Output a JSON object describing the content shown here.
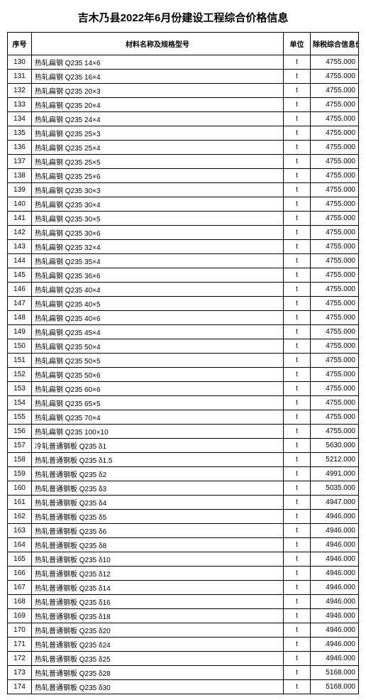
{
  "title": "吉木乃县2022年6月份建设工程综合价格信息",
  "columns": {
    "seq": "序号",
    "name": "材料名称及规格型号",
    "unit": "单位",
    "price": "除税综合信息价"
  },
  "rows": [
    {
      "seq": "130",
      "name": "热轧扁钢 Q235 14×6",
      "unit": "t",
      "price": "4755.000"
    },
    {
      "seq": "131",
      "name": "热轧扁钢 Q235 16×4",
      "unit": "t",
      "price": "4755.000"
    },
    {
      "seq": "132",
      "name": "热轧扁钢 Q235 20×3",
      "unit": "t",
      "price": "4755.000"
    },
    {
      "seq": "133",
      "name": "热轧扁钢 Q235 20×4",
      "unit": "t",
      "price": "4755.000"
    },
    {
      "seq": "134",
      "name": "热轧扁钢 Q235 24×4",
      "unit": "t",
      "price": "4755.000"
    },
    {
      "seq": "135",
      "name": "热轧扁钢 Q235 25×3",
      "unit": "t",
      "price": "4755.000"
    },
    {
      "seq": "136",
      "name": "热轧扁钢 Q235 25×4",
      "unit": "t",
      "price": "4755.000"
    },
    {
      "seq": "137",
      "name": "热轧扁钢 Q235 25×5",
      "unit": "t",
      "price": "4755.000"
    },
    {
      "seq": "138",
      "name": "热轧扁钢 Q235 25×6",
      "unit": "t",
      "price": "4755.000"
    },
    {
      "seq": "139",
      "name": "热轧扁钢 Q235 30×3",
      "unit": "t",
      "price": "4755.000"
    },
    {
      "seq": "140",
      "name": "热轧扁钢 Q235 30×4",
      "unit": "t",
      "price": "4755.000"
    },
    {
      "seq": "141",
      "name": "热轧扁钢 Q235 30×5",
      "unit": "t",
      "price": "4755.000"
    },
    {
      "seq": "142",
      "name": "热轧扁钢 Q235 30×6",
      "unit": "t",
      "price": "4755.000"
    },
    {
      "seq": "143",
      "name": "热轧扁钢 Q235 32×4",
      "unit": "t",
      "price": "4755.000"
    },
    {
      "seq": "144",
      "name": "热轧扁钢 Q235 35×4",
      "unit": "t",
      "price": "4755.000"
    },
    {
      "seq": "145",
      "name": "热轧扁钢 Q235 36×6",
      "unit": "t",
      "price": "4755.000"
    },
    {
      "seq": "146",
      "name": "热轧扁钢 Q235 40×4",
      "unit": "t",
      "price": "4755.000"
    },
    {
      "seq": "147",
      "name": "热轧扁钢 Q235 40×5",
      "unit": "t",
      "price": "4755.000"
    },
    {
      "seq": "148",
      "name": "热轧扁钢 Q235 40×6",
      "unit": "t",
      "price": "4755.000"
    },
    {
      "seq": "149",
      "name": "热轧扁钢 Q235 45×4",
      "unit": "t",
      "price": "4755.000"
    },
    {
      "seq": "150",
      "name": "热轧扁钢 Q235 50×4",
      "unit": "t",
      "price": "4755.000"
    },
    {
      "seq": "151",
      "name": "热轧扁钢 Q235 50×5",
      "unit": "t",
      "price": "4755.000"
    },
    {
      "seq": "152",
      "name": "热轧扁钢 Q235 50×6",
      "unit": "t",
      "price": "4755.000"
    },
    {
      "seq": "153",
      "name": "热轧扁钢 Q235 60×6",
      "unit": "t",
      "price": "4755.000"
    },
    {
      "seq": "154",
      "name": "热轧扁钢 Q235 65×5",
      "unit": "t",
      "price": "4755.000"
    },
    {
      "seq": "155",
      "name": "热轧扁钢 Q235 70×4",
      "unit": "t",
      "price": "4755.000"
    },
    {
      "seq": "156",
      "name": "热轧扁钢 Q235 100×10",
      "unit": "t",
      "price": "4755.000"
    },
    {
      "seq": "157",
      "name": "冷轧普通钢板 Q235 δ1",
      "unit": "t",
      "price": "5630.000"
    },
    {
      "seq": "158",
      "name": "热轧普通钢板 Q235 δ1.5",
      "unit": "t",
      "price": "5212.000"
    },
    {
      "seq": "159",
      "name": "热轧普通钢板 Q235 δ2",
      "unit": "t",
      "price": "4991.000"
    },
    {
      "seq": "160",
      "name": "热轧普通钢板 Q235 δ3",
      "unit": "t",
      "price": "5035.000"
    },
    {
      "seq": "161",
      "name": "热轧普通钢板 Q235 δ4",
      "unit": "t",
      "price": "4947.000"
    },
    {
      "seq": "162",
      "name": "热轧普通钢板 Q235 δ5",
      "unit": "t",
      "price": "4946.000"
    },
    {
      "seq": "163",
      "name": "热轧普通钢板 Q235 δ6",
      "unit": "t",
      "price": "4946.000"
    },
    {
      "seq": "164",
      "name": "热轧普通钢板 Q235 δ8",
      "unit": "t",
      "price": "4946.000"
    },
    {
      "seq": "165",
      "name": "热轧普通钢板 Q235 δ10",
      "unit": "t",
      "price": "4946.000"
    },
    {
      "seq": "166",
      "name": "热轧普通钢板 Q235 δ12",
      "unit": "t",
      "price": "4946.000"
    },
    {
      "seq": "167",
      "name": "热轧普通钢板 Q235 δ14",
      "unit": "t",
      "price": "4946.000"
    },
    {
      "seq": "168",
      "name": "热轧普通钢板 Q235 δ16",
      "unit": "t",
      "price": "4946.000"
    },
    {
      "seq": "169",
      "name": "热轧普通钢板 Q235 δ18",
      "unit": "t",
      "price": "4946.000"
    },
    {
      "seq": "170",
      "name": "热轧普通钢板 Q235 δ20",
      "unit": "t",
      "price": "4946.000"
    },
    {
      "seq": "171",
      "name": "热轧普通钢板 Q235 δ24",
      "unit": "t",
      "price": "4946.000"
    },
    {
      "seq": "172",
      "name": "热轧普通钢板 Q235 δ25",
      "unit": "t",
      "price": "4946.000"
    },
    {
      "seq": "173",
      "name": "热轧普通钢板 Q235 δ28",
      "unit": "t",
      "price": "5168.000"
    },
    {
      "seq": "174",
      "name": "热轧普通钢板 Q235 δ30",
      "unit": "t",
      "price": "5168.000"
    }
  ]
}
